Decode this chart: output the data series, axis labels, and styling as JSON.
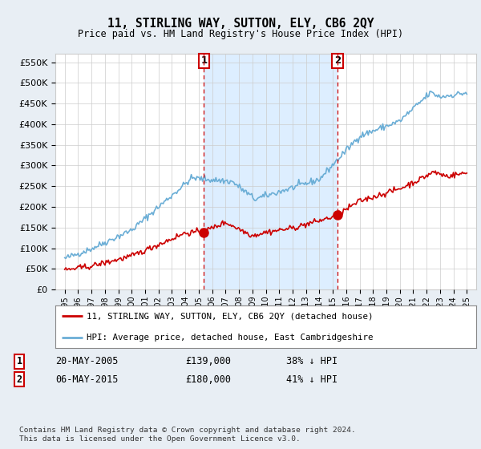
{
  "title": "11, STIRLING WAY, SUTTON, ELY, CB6 2QY",
  "subtitle": "Price paid vs. HM Land Registry's House Price Index (HPI)",
  "ylabel_ticks": [
    "£0",
    "£50K",
    "£100K",
    "£150K",
    "£200K",
    "£250K",
    "£300K",
    "£350K",
    "£400K",
    "£450K",
    "£500K",
    "£550K"
  ],
  "ytick_values": [
    0,
    50000,
    100000,
    150000,
    200000,
    250000,
    300000,
    350000,
    400000,
    450000,
    500000,
    550000
  ],
  "ylim": [
    0,
    570000
  ],
  "hpi_color": "#6baed6",
  "price_color": "#cc0000",
  "vline_color": "#cc0000",
  "shade_color": "#ddeeff",
  "sale1_year": 2005.38,
  "sale2_year": 2015.35,
  "sale1_price": 139000,
  "sale2_price": 180000,
  "legend_label1": "11, STIRLING WAY, SUTTON, ELY, CB6 2QY (detached house)",
  "legend_label2": "HPI: Average price, detached house, East Cambridgeshire",
  "note1_date": "20-MAY-2005",
  "note1_price": "£139,000",
  "note1_hpi": "38% ↓ HPI",
  "note2_date": "06-MAY-2015",
  "note2_price": "£180,000",
  "note2_hpi": "41% ↓ HPI",
  "footer": "Contains HM Land Registry data © Crown copyright and database right 2024.\nThis data is licensed under the Open Government Licence v3.0.",
  "bg_color": "#e8eef4",
  "plot_bg_color": "#ffffff",
  "grid_color": "#cccccc"
}
